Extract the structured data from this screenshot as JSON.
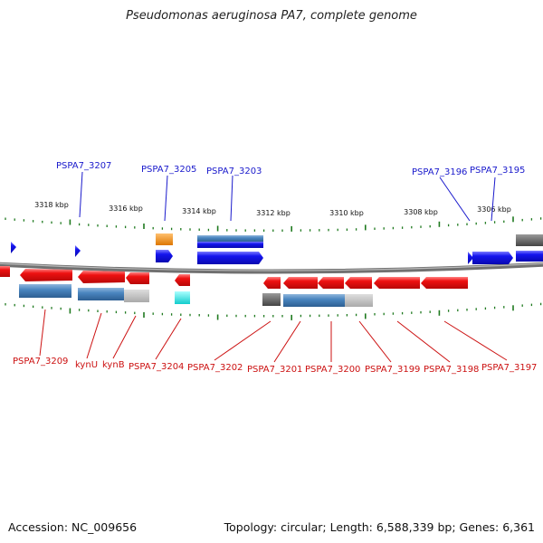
{
  "title": "Pseudomonas aeruginosa PA7, complete genome",
  "footer": {
    "accession": "Accession: NC_009656",
    "topology": "Topology: circular; Length: 6,588,339 bp; Genes: 6,361"
  },
  "ruler": {
    "labels": [
      "3318 kbp",
      "3316 kbp",
      "3314 kbp",
      "3312 kbp",
      "3310 kbp",
      "3308 kbp",
      "3306 kbp"
    ]
  },
  "gene_labels_forward": [
    "PSPA7_3207",
    "PSPA7_3205",
    "PSPA7_3203",
    "PSPA7_3196",
    "PSPA7_3195"
  ],
  "gene_labels_reverse": [
    "PSPA7_3209",
    "kynU",
    "kynB",
    "PSPA7_3204",
    "PSPA7_3202",
    "PSPA7_3201",
    "PSPA7_3200",
    "PSPA7_3199",
    "PSPA7_3198",
    "PSPA7_3197"
  ],
  "colors": {
    "forward_gene": "#1010ee",
    "reverse_gene": "#ee1111",
    "forward_label": "#1a1acc",
    "reverse_label": "#cc1111",
    "tick": "#1f7a1f",
    "backbone": "#808080",
    "cds_blue": "#4a86c0",
    "rna_orange": "#ee8811",
    "rna_cyan": "#22dddd",
    "pseudo_gray": "#666666"
  }
}
